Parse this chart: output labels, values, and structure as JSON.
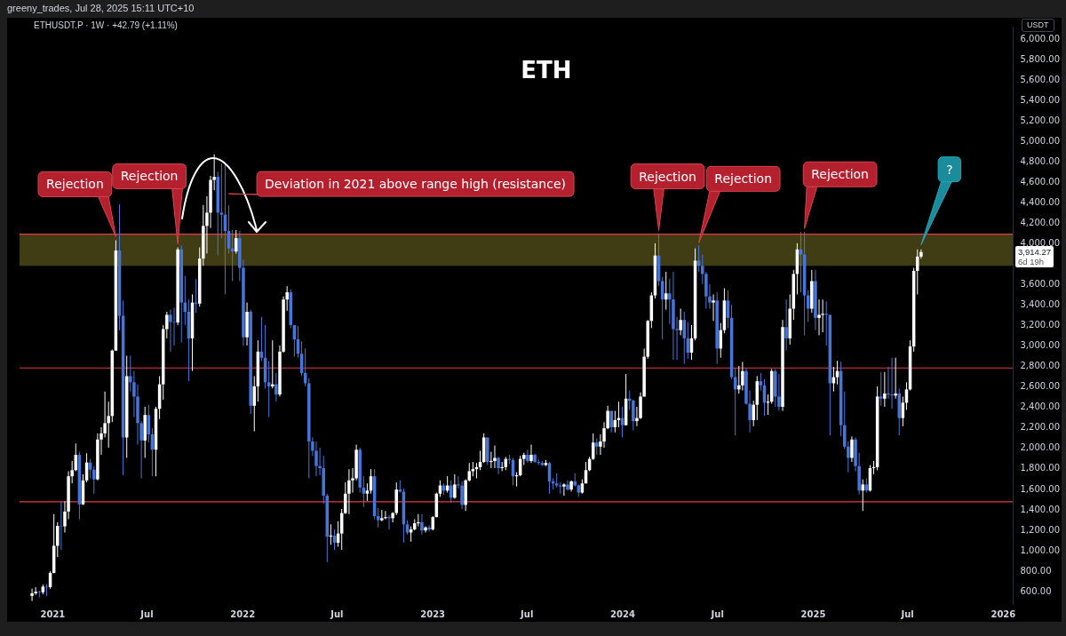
{
  "chart_data": {
    "type": "candlestick",
    "title": "ETH",
    "subtitle": "ETHUSDT.P · 1W · +42.79 (+1.11%)",
    "ylabel": "USDT",
    "annotations": [
      "greeny_trades, Jul 28, 2025 15:11 UTC+10",
      "3,914.27",
      "6d 19h",
      {
        "text": "Rejection",
        "x": "2021-05-03",
        "y": 4030
      },
      {
        "text": "Rejection",
        "x": "2021-08-30",
        "y": 3960
      },
      {
        "text": "Deviation in 2021 above range high (resistance)",
        "x": "2021-12-06",
        "y": 4450
      },
      {
        "text": "Rejection",
        "x": "2024-03-11",
        "y": 4090
      },
      {
        "text": "Rejection",
        "x": "2024-05-27",
        "y": 3970
      },
      {
        "text": "Rejection",
        "x": "2024-12-16",
        "y": 4110
      },
      {
        "text": "?",
        "x": "2025-07-28",
        "y": 3950
      }
    ],
    "xlim": [
      "2020-10-30",
      "2026-01-20"
    ],
    "xticks": [
      {
        "value": "2021-01-01",
        "label": "2021"
      },
      {
        "value": "2021-07-01",
        "label": "Jul"
      },
      {
        "value": "2022-01-01",
        "label": "2022"
      },
      {
        "value": "2022-07-01",
        "label": "Jul"
      },
      {
        "value": "2023-01-01",
        "label": "2023"
      },
      {
        "value": "2023-07-01",
        "label": "Jul"
      },
      {
        "value": "2024-01-01",
        "label": "2024"
      },
      {
        "value": "2024-07-01",
        "label": "Jul"
      },
      {
        "value": "2025-01-01",
        "label": "2025"
      },
      {
        "value": "2025-07-01",
        "label": "Jul"
      },
      {
        "value": "2026-01-01",
        "label": "2026"
      }
    ],
    "ylim": [
      470,
      6120
    ],
    "yticks": [
      {
        "value": 600,
        "label": "600.00"
      },
      {
        "value": 800,
        "label": "800.00"
      },
      {
        "value": 1000,
        "label": "1,000.00"
      },
      {
        "value": 1200,
        "label": "1,200.00"
      },
      {
        "value": 1400,
        "label": "1,400.00"
      },
      {
        "value": 1600,
        "label": "1,600.00"
      },
      {
        "value": 1800,
        "label": "1,800.00"
      },
      {
        "value": 2000,
        "label": "2,000.00"
      },
      {
        "value": 2200,
        "label": "2,200.00"
      },
      {
        "value": 2400,
        "label": "2,400.00"
      },
      {
        "value": 2600,
        "label": "2,600.00"
      },
      {
        "value": 2800,
        "label": "2,800.00"
      },
      {
        "value": 3000,
        "label": "3,000.00"
      },
      {
        "value": 3200,
        "label": "3,200.00"
      },
      {
        "value": 3400,
        "label": "3,400.00"
      },
      {
        "value": 3600,
        "label": "3,600.00"
      },
      {
        "value": 4000,
        "label": "4,000.00"
      },
      {
        "value": 4200,
        "label": "4,200.00"
      },
      {
        "value": 4400,
        "label": "4,400.00"
      },
      {
        "value": 4600,
        "label": "4,600.00"
      },
      {
        "value": 4800,
        "label": "4,800.00"
      },
      {
        "value": 5000,
        "label": "5,000.00"
      },
      {
        "value": 5200,
        "label": "5,200.00"
      },
      {
        "value": 5400,
        "label": "5,400.00"
      },
      {
        "value": 5600,
        "label": "5,600.00"
      },
      {
        "value": 5800,
        "label": "5,800.00"
      },
      {
        "value": 6000,
        "label": "6,000.00"
      }
    ],
    "grid": false,
    "bands": [
      {
        "axis": "y",
        "from": 3780,
        "to": 4090,
        "color": "#4b4616"
      }
    ],
    "ref_lines": [
      {
        "axis": "y",
        "value": 4090,
        "color": "#e23a4a"
      },
      {
        "axis": "y",
        "value": 2780,
        "color": "#e23a4a"
      },
      {
        "axis": "y",
        "value": 1470,
        "color": "#e23a4a"
      }
    ],
    "x": [
      "2020-11-23",
      "2020-11-30",
      "2020-12-07",
      "2020-12-14",
      "2020-12-21",
      "2020-12-28",
      "2021-01-04",
      "2021-01-11",
      "2021-01-18",
      "2021-01-25",
      "2021-02-01",
      "2021-02-08",
      "2021-02-15",
      "2021-02-22",
      "2021-03-01",
      "2021-03-08",
      "2021-03-15",
      "2021-03-22",
      "2021-03-29",
      "2021-04-05",
      "2021-04-12",
      "2021-04-19",
      "2021-04-26",
      "2021-05-03",
      "2021-05-10",
      "2021-05-17",
      "2021-05-24",
      "2021-05-31",
      "2021-06-07",
      "2021-06-14",
      "2021-06-21",
      "2021-06-28",
      "2021-07-05",
      "2021-07-12",
      "2021-07-19",
      "2021-07-26",
      "2021-08-02",
      "2021-08-09",
      "2021-08-16",
      "2021-08-23",
      "2021-08-30",
      "2021-09-06",
      "2021-09-13",
      "2021-09-20",
      "2021-09-27",
      "2021-10-04",
      "2021-10-11",
      "2021-10-18",
      "2021-10-25",
      "2021-11-01",
      "2021-11-08",
      "2021-11-15",
      "2021-11-22",
      "2021-11-29",
      "2021-12-06",
      "2021-12-13",
      "2021-12-20",
      "2021-12-27",
      "2022-01-03",
      "2022-01-10",
      "2022-01-17",
      "2022-01-24",
      "2022-01-31",
      "2022-02-07",
      "2022-02-14",
      "2022-02-21",
      "2022-02-28",
      "2022-03-07",
      "2022-03-14",
      "2022-03-21",
      "2022-03-28",
      "2022-04-04",
      "2022-04-11",
      "2022-04-18",
      "2022-04-25",
      "2022-05-02",
      "2022-05-09",
      "2022-05-16",
      "2022-05-23",
      "2022-05-30",
      "2022-06-06",
      "2022-06-13",
      "2022-06-20",
      "2022-06-27",
      "2022-07-04",
      "2022-07-11",
      "2022-07-18",
      "2022-07-25",
      "2022-08-01",
      "2022-08-08",
      "2022-08-15",
      "2022-08-22",
      "2022-08-29",
      "2022-09-05",
      "2022-09-12",
      "2022-09-19",
      "2022-09-26",
      "2022-10-03",
      "2022-10-10",
      "2022-10-17",
      "2022-10-24",
      "2022-10-31",
      "2022-11-07",
      "2022-11-14",
      "2022-11-21",
      "2022-11-28",
      "2022-12-05",
      "2022-12-12",
      "2022-12-19",
      "2022-12-26",
      "2023-01-02",
      "2023-01-09",
      "2023-01-16",
      "2023-01-23",
      "2023-01-30",
      "2023-02-06",
      "2023-02-13",
      "2023-02-20",
      "2023-02-27",
      "2023-03-06",
      "2023-03-13",
      "2023-03-20",
      "2023-03-27",
      "2023-04-03",
      "2023-04-10",
      "2023-04-17",
      "2023-04-24",
      "2023-05-01",
      "2023-05-08",
      "2023-05-15",
      "2023-05-22",
      "2023-05-29",
      "2023-06-05",
      "2023-06-12",
      "2023-06-19",
      "2023-06-26",
      "2023-07-03",
      "2023-07-10",
      "2023-07-17",
      "2023-07-24",
      "2023-07-31",
      "2023-08-07",
      "2023-08-14",
      "2023-08-21",
      "2023-08-28",
      "2023-09-04",
      "2023-09-11",
      "2023-09-18",
      "2023-09-25",
      "2023-10-02",
      "2023-10-09",
      "2023-10-16",
      "2023-10-23",
      "2023-10-30",
      "2023-11-06",
      "2023-11-13",
      "2023-11-20",
      "2023-11-27",
      "2023-12-04",
      "2023-12-11",
      "2023-12-18",
      "2023-12-25",
      "2024-01-01",
      "2024-01-08",
      "2024-01-15",
      "2024-01-22",
      "2024-01-29",
      "2024-02-05",
      "2024-02-12",
      "2024-02-19",
      "2024-02-26",
      "2024-03-04",
      "2024-03-11",
      "2024-03-18",
      "2024-03-25",
      "2024-04-01",
      "2024-04-08",
      "2024-04-15",
      "2024-04-22",
      "2024-04-29",
      "2024-05-06",
      "2024-05-13",
      "2024-05-20",
      "2024-05-27",
      "2024-06-03",
      "2024-06-10",
      "2024-06-17",
      "2024-06-24",
      "2024-07-01",
      "2024-07-08",
      "2024-07-15",
      "2024-07-22",
      "2024-07-29",
      "2024-08-05",
      "2024-08-12",
      "2024-08-19",
      "2024-08-26",
      "2024-09-02",
      "2024-09-09",
      "2024-09-16",
      "2024-09-23",
      "2024-09-30",
      "2024-10-07",
      "2024-10-14",
      "2024-10-21",
      "2024-10-28",
      "2024-11-04",
      "2024-11-11",
      "2024-11-18",
      "2024-11-25",
      "2024-12-02",
      "2024-12-09",
      "2024-12-16",
      "2024-12-23",
      "2024-12-30",
      "2025-01-06",
      "2025-01-13",
      "2025-01-20",
      "2025-01-27",
      "2025-02-03",
      "2025-02-10",
      "2025-02-17",
      "2025-02-24",
      "2025-03-03",
      "2025-03-10",
      "2025-03-17",
      "2025-03-24",
      "2025-03-31",
      "2025-04-07",
      "2025-04-14",
      "2025-04-21",
      "2025-04-28",
      "2025-05-05",
      "2025-05-12",
      "2025-05-19",
      "2025-05-26",
      "2025-06-02",
      "2025-06-09",
      "2025-06-16",
      "2025-06-23",
      "2025-06-30",
      "2025-07-07",
      "2025-07-14",
      "2025-07-21",
      "2025-07-28"
    ],
    "ohlc": [
      [
        550,
        620,
        500,
        575
      ],
      [
        575,
        635,
        560,
        590
      ],
      [
        590,
        600,
        535,
        585
      ],
      [
        585,
        660,
        565,
        640
      ],
      [
        640,
        665,
        550,
        635
      ],
      [
        635,
        790,
        620,
        775
      ],
      [
        775,
        1350,
        770,
        1040
      ],
      [
        1040,
        1270,
        930,
        1235
      ],
      [
        1235,
        1475,
        1000,
        1230
      ],
      [
        1230,
        1475,
        1170,
        1375
      ],
      [
        1375,
        1770,
        1300,
        1720
      ],
      [
        1720,
        1870,
        1650,
        1780
      ],
      [
        1780,
        2040,
        1770,
        1930
      ],
      [
        1930,
        1960,
        1300,
        1445
      ],
      [
        1445,
        1740,
        1440,
        1680
      ],
      [
        1680,
        1945,
        1660,
        1855
      ],
      [
        1855,
        1890,
        1700,
        1785
      ],
      [
        1785,
        1820,
        1550,
        1690
      ],
      [
        1690,
        2140,
        1680,
        2080
      ],
      [
        2080,
        2200,
        1930,
        2140
      ],
      [
        2140,
        2550,
        2100,
        2240
      ],
      [
        2240,
        2450,
        2000,
        2310
      ],
      [
        2310,
        2960,
        2250,
        2950
      ],
      [
        2950,
        4030,
        2950,
        3930
      ],
      [
        3930,
        4380,
        3150,
        3290
      ],
      [
        3290,
        3440,
        1730,
        2100
      ],
      [
        2100,
        2900,
        1900,
        2700
      ],
      [
        2700,
        2900,
        2550,
        2640
      ],
      [
        2640,
        2750,
        2300,
        2500
      ],
      [
        2500,
        2620,
        2030,
        2240
      ],
      [
        2240,
        2260,
        1700,
        2070
      ],
      [
        2070,
        2400,
        1900,
        2320
      ],
      [
        2320,
        2420,
        2050,
        2130
      ],
      [
        2130,
        2190,
        1720,
        1980
      ],
      [
        1980,
        2400,
        1720,
        2380
      ],
      [
        2380,
        2700,
        2280,
        2620
      ],
      [
        2620,
        3200,
        2470,
        3160
      ],
      [
        3160,
        3330,
        3070,
        3300
      ],
      [
        3300,
        3350,
        2940,
        3230
      ],
      [
        3230,
        3370,
        3000,
        3225
      ],
      [
        3225,
        3960,
        3200,
        3940
      ],
      [
        3940,
        3980,
        3030,
        3420
      ],
      [
        3420,
        3680,
        3200,
        3330
      ],
      [
        3330,
        3450,
        2650,
        3070
      ],
      [
        3070,
        3500,
        2750,
        3420
      ],
      [
        3420,
        3650,
        3320,
        3410
      ],
      [
        3410,
        3960,
        3380,
        3850
      ],
      [
        3850,
        4375,
        3780,
        4170
      ],
      [
        4170,
        4460,
        3900,
        4300
      ],
      [
        4300,
        4660,
        4150,
        4620
      ],
      [
        4620,
        4870,
        4520,
        4650
      ],
      [
        4650,
        4700,
        3880,
        4300
      ],
      [
        4300,
        4780,
        4050,
        4280
      ],
      [
        4280,
        4790,
        3500,
        4120
      ],
      [
        4120,
        4370,
        3900,
        3950
      ],
      [
        3950,
        4130,
        3630,
        3920
      ],
      [
        3920,
        4130,
        3900,
        4050
      ],
      [
        4050,
        4120,
        3630,
        3760
      ],
      [
        3760,
        3840,
        3000,
        3080
      ],
      [
        3080,
        3420,
        3000,
        3330
      ],
      [
        3330,
        3350,
        2330,
        2410
      ],
      [
        2410,
        2700,
        2160,
        2600
      ],
      [
        2600,
        3050,
        2450,
        2940
      ],
      [
        2940,
        3280,
        2850,
        2880
      ],
      [
        2880,
        3200,
        2580,
        2640
      ],
      [
        2640,
        2850,
        2300,
        2600
      ],
      [
        2600,
        3050,
        2580,
        2620
      ],
      [
        2620,
        2730,
        2450,
        2520
      ],
      [
        2520,
        3000,
        2500,
        2940
      ],
      [
        2940,
        3480,
        2930,
        3450
      ],
      [
        3450,
        3580,
        3340,
        3520
      ],
      [
        3520,
        3550,
        3170,
        3200
      ],
      [
        3200,
        3200,
        2890,
        3060
      ],
      [
        3060,
        3190,
        2880,
        2920
      ],
      [
        2920,
        3040,
        2700,
        2730
      ],
      [
        2730,
        2970,
        2600,
        2630
      ],
      [
        2630,
        2680,
        1700,
        2060
      ],
      [
        2060,
        2100,
        1920,
        1970
      ],
      [
        1970,
        2060,
        1720,
        1820
      ],
      [
        1820,
        2000,
        1730,
        1800
      ],
      [
        1800,
        1920,
        1450,
        1530
      ],
      [
        1530,
        1550,
        880,
        1130
      ],
      [
        1130,
        1250,
        1050,
        1140
      ],
      [
        1140,
        1200,
        1000,
        1070
      ],
      [
        1070,
        1280,
        1030,
        1160
      ],
      [
        1160,
        1400,
        1000,
        1360
      ],
      [
        1360,
        1660,
        1350,
        1550
      ],
      [
        1550,
        1790,
        1350,
        1680
      ],
      [
        1680,
        1800,
        1560,
        1700
      ],
      [
        1700,
        2030,
        1680,
        1980
      ],
      [
        1980,
        2000,
        1560,
        1610
      ],
      [
        1610,
        1720,
        1420,
        1550
      ],
      [
        1550,
        1650,
        1480,
        1580
      ],
      [
        1580,
        1790,
        1550,
        1720
      ],
      [
        1720,
        1790,
        1300,
        1330
      ],
      [
        1330,
        1410,
        1220,
        1290
      ],
      [
        1290,
        1390,
        1280,
        1310
      ],
      [
        1310,
        1380,
        1300,
        1320
      ],
      [
        1320,
        1340,
        1200,
        1310
      ],
      [
        1310,
        1370,
        1270,
        1360
      ],
      [
        1360,
        1660,
        1340,
        1590
      ],
      [
        1590,
        1680,
        1560,
        1570
      ],
      [
        1570,
        1600,
        1070,
        1250
      ],
      [
        1250,
        1290,
        1150,
        1170
      ],
      [
        1170,
        1230,
        1080,
        1200
      ],
      [
        1200,
        1300,
        1190,
        1260
      ],
      [
        1260,
        1350,
        1230,
        1270
      ],
      [
        1270,
        1350,
        1150,
        1190
      ],
      [
        1190,
        1230,
        1170,
        1220
      ],
      [
        1220,
        1240,
        1180,
        1200
      ],
      [
        1200,
        1330,
        1190,
        1320
      ],
      [
        1320,
        1560,
        1320,
        1550
      ],
      [
        1550,
        1680,
        1520,
        1630
      ],
      [
        1630,
        1650,
        1540,
        1580
      ],
      [
        1580,
        1720,
        1560,
        1630
      ],
      [
        1630,
        1680,
        1460,
        1510
      ],
      [
        1510,
        1740,
        1500,
        1640
      ],
      [
        1640,
        1720,
        1600,
        1630
      ],
      [
        1630,
        1670,
        1400,
        1440
      ],
      [
        1440,
        1690,
        1380,
        1680
      ],
      [
        1680,
        1850,
        1670,
        1770
      ],
      [
        1770,
        1860,
        1720,
        1790
      ],
      [
        1790,
        1850,
        1700,
        1810
      ],
      [
        1810,
        1970,
        1780,
        1860
      ],
      [
        1860,
        2140,
        1850,
        2100
      ],
      [
        2100,
        2100,
        1830,
        1860
      ],
      [
        1860,
        1960,
        1800,
        1870
      ],
      [
        1870,
        2020,
        1800,
        1900
      ],
      [
        1900,
        1910,
        1740,
        1800
      ],
      [
        1800,
        1860,
        1770,
        1810
      ],
      [
        1810,
        1910,
        1780,
        1890
      ],
      [
        1890,
        1930,
        1840,
        1880
      ],
      [
        1880,
        1900,
        1630,
        1720
      ],
      [
        1720,
        1760,
        1620,
        1730
      ],
      [
        1730,
        1920,
        1720,
        1890
      ],
      [
        1890,
        1950,
        1830,
        1930
      ],
      [
        1930,
        1980,
        1850,
        1870
      ],
      [
        1870,
        2030,
        1850,
        1930
      ],
      [
        1930,
        1940,
        1850,
        1860
      ],
      [
        1860,
        1890,
        1830,
        1850
      ],
      [
        1850,
        1870,
        1820,
        1830
      ],
      [
        1830,
        1880,
        1820,
        1850
      ],
      [
        1850,
        1860,
        1550,
        1670
      ],
      [
        1670,
        1700,
        1590,
        1650
      ],
      [
        1650,
        1750,
        1610,
        1630
      ],
      [
        1630,
        1660,
        1550,
        1620
      ],
      [
        1620,
        1650,
        1530,
        1640
      ],
      [
        1640,
        1680,
        1580,
        1590
      ],
      [
        1590,
        1680,
        1570,
        1670
      ],
      [
        1670,
        1750,
        1620,
        1630
      ],
      [
        1630,
        1640,
        1520,
        1560
      ],
      [
        1560,
        1690,
        1550,
        1650
      ],
      [
        1650,
        1860,
        1650,
        1780
      ],
      [
        1780,
        1910,
        1770,
        1890
      ],
      [
        1890,
        2140,
        1880,
        2050
      ],
      [
        2050,
        2090,
        1930,
        2010
      ],
      [
        2010,
        2130,
        1930,
        2060
      ],
      [
        2060,
        2250,
        2000,
        2190
      ],
      [
        2190,
        2410,
        2180,
        2360
      ],
      [
        2360,
        2360,
        2150,
        2200
      ],
      [
        2200,
        2360,
        2150,
        2270
      ],
      [
        2270,
        2450,
        2200,
        2290
      ],
      [
        2290,
        2400,
        2100,
        2220
      ],
      [
        2220,
        2720,
        2220,
        2480
      ],
      [
        2480,
        2560,
        2370,
        2460
      ],
      [
        2460,
        2470,
        2170,
        2260
      ],
      [
        2260,
        2400,
        2210,
        2290
      ],
      [
        2290,
        2540,
        2280,
        2500
      ],
      [
        2500,
        2970,
        2500,
        2890
      ],
      [
        2890,
        3250,
        2870,
        3240
      ],
      [
        3240,
        3520,
        3170,
        3490
      ],
      [
        3490,
        4000,
        3460,
        3880
      ],
      [
        3880,
        4090,
        3580,
        3630
      ],
      [
        3630,
        3670,
        3060,
        3450
      ],
      [
        3450,
        3720,
        3350,
        3510
      ],
      [
        3510,
        3650,
        3210,
        3450
      ],
      [
        3450,
        3720,
        2860,
        3160
      ],
      [
        3160,
        3280,
        2860,
        3150
      ],
      [
        3150,
        3360,
        3100,
        3250
      ],
      [
        3250,
        3330,
        2820,
        3070
      ],
      [
        3070,
        3230,
        2870,
        2930
      ],
      [
        2930,
        3200,
        2860,
        3070
      ],
      [
        3070,
        3950,
        3050,
        3830
      ],
      [
        3830,
        3980,
        3720,
        3780
      ],
      [
        3780,
        3890,
        3600,
        3700
      ],
      [
        3700,
        3720,
        3360,
        3480
      ],
      [
        3480,
        3600,
        3360,
        3420
      ],
      [
        3420,
        3500,
        3240,
        3440
      ],
      [
        3440,
        3520,
        2820,
        2970
      ],
      [
        2970,
        3220,
        2880,
        3150
      ],
      [
        3150,
        3560,
        3120,
        3440
      ],
      [
        3440,
        3540,
        3170,
        3270
      ],
      [
        3270,
        3400,
        2670,
        2690
      ],
      [
        2690,
        2780,
        2120,
        2570
      ],
      [
        2570,
        2800,
        2530,
        2610
      ],
      [
        2610,
        2840,
        2560,
        2750
      ],
      [
        2750,
        2780,
        2420,
        2430
      ],
      [
        2430,
        2560,
        2150,
        2270
      ],
      [
        2270,
        2460,
        2210,
        2420
      ],
      [
        2420,
        2700,
        2270,
        2650
      ],
      [
        2650,
        2730,
        2560,
        2610
      ],
      [
        2610,
        2670,
        2310,
        2440
      ],
      [
        2440,
        2520,
        2320,
        2450
      ],
      [
        2450,
        2770,
        2430,
        2750
      ],
      [
        2750,
        2770,
        2400,
        2500
      ],
      [
        2500,
        2720,
        2360,
        2400
      ],
      [
        2400,
        3250,
        2360,
        3180
      ],
      [
        3180,
        3450,
        2950,
        3070
      ],
      [
        3070,
        3500,
        3010,
        3360
      ],
      [
        3360,
        3740,
        3250,
        3700
      ],
      [
        3700,
        4000,
        3500,
        3940
      ],
      [
        3940,
        4110,
        3520,
        3890
      ],
      [
        3890,
        4110,
        3100,
        3490
      ],
      [
        3490,
        3540,
        3230,
        3360
      ],
      [
        3360,
        3740,
        3320,
        3630
      ],
      [
        3630,
        3740,
        3150,
        3270
      ],
      [
        3270,
        3450,
        3100,
        3300
      ],
      [
        3300,
        3450,
        3130,
        3310
      ],
      [
        3310,
        3430,
        3000,
        3300
      ],
      [
        3300,
        3300,
        2120,
        2630
      ],
      [
        2630,
        2790,
        2550,
        2690
      ],
      [
        2690,
        2850,
        2620,
        2750
      ],
      [
        2750,
        2840,
        2110,
        2220
      ],
      [
        2220,
        2550,
        1990,
        2010
      ],
      [
        2010,
        2060,
        1760,
        1900
      ],
      [
        1900,
        2110,
        1860,
        2080
      ],
      [
        2080,
        2100,
        1770,
        1820
      ],
      [
        1820,
        1950,
        1540,
        1580
      ],
      [
        1580,
        1690,
        1380,
        1640
      ],
      [
        1640,
        1700,
        1560,
        1580
      ],
      [
        1580,
        1830,
        1570,
        1800
      ],
      [
        1800,
        1870,
        1740,
        1810
      ],
      [
        1810,
        2600,
        1780,
        2500
      ],
      [
        2500,
        2740,
        2410,
        2480
      ],
      [
        2480,
        2740,
        2400,
        2530
      ],
      [
        2530,
        2790,
        2480,
        2520
      ],
      [
        2520,
        2880,
        2380,
        2510
      ],
      [
        2510,
        2880,
        2480,
        2530
      ],
      [
        2530,
        2580,
        2120,
        2290
      ],
      [
        2290,
        2500,
        2210,
        2440
      ],
      [
        2440,
        2640,
        2370,
        2570
      ],
      [
        2570,
        3050,
        2560,
        2990
      ],
      [
        2990,
        3760,
        2940,
        3730
      ],
      [
        3730,
        3940,
        3500,
        3870
      ],
      [
        3870,
        3940,
        3850,
        3914.27
      ]
    ],
    "colors": [
      "#ffffff",
      "#ffffff",
      "#4676dc",
      "#ffffff",
      "#4676dc",
      "#ffffff",
      "#ffffff",
      "#ffffff",
      "#4676dc",
      "#ffffff",
      "#ffffff",
      "#ffffff",
      "#ffffff",
      "#4676dc",
      "#ffffff",
      "#ffffff",
      "#4676dc",
      "#4676dc",
      "#ffffff",
      "#ffffff",
      "#ffffff",
      "#ffffff",
      "#ffffff",
      "#ffffff",
      "#4676dc",
      "#4676dc",
      "#ffffff",
      "#4676dc",
      "#4676dc",
      "#4676dc",
      "#4676dc",
      "#ffffff",
      "#4676dc",
      "#4676dc",
      "#ffffff",
      "#ffffff",
      "#ffffff",
      "#ffffff",
      "#4676dc",
      "#4676dc",
      "#ffffff",
      "#4676dc",
      "#4676dc",
      "#4676dc",
      "#ffffff",
      "#4676dc",
      "#ffffff",
      "#ffffff",
      "#ffffff",
      "#ffffff",
      "#ffffff",
      "#4676dc",
      "#4676dc",
      "#4676dc",
      "#4676dc",
      "#4676dc",
      "#ffffff",
      "#4676dc",
      "#4676dc",
      "#ffffff",
      "#4676dc",
      "#ffffff",
      "#ffffff",
      "#4676dc",
      "#4676dc",
      "#4676dc",
      "#ffffff",
      "#4676dc",
      "#ffffff",
      "#ffffff",
      "#ffffff",
      "#4676dc",
      "#4676dc",
      "#4676dc",
      "#4676dc",
      "#4676dc",
      "#4676dc",
      "#4676dc",
      "#4676dc",
      "#4676dc",
      "#4676dc",
      "#4676dc",
      "#ffffff",
      "#4676dc",
      "#ffffff",
      "#ffffff",
      "#ffffff",
      "#ffffff",
      "#ffffff",
      "#ffffff",
      "#4676dc",
      "#4676dc",
      "#ffffff",
      "#ffffff",
      "#4676dc",
      "#4676dc",
      "#ffffff",
      "#ffffff",
      "#4676dc",
      "#ffffff",
      "#ffffff",
      "#4676dc",
      "#4676dc",
      "#4676dc",
      "#ffffff",
      "#ffffff",
      "#ffffff",
      "#4676dc",
      "#ffffff",
      "#4676dc",
      "#ffffff",
      "#ffffff",
      "#ffffff",
      "#4676dc",
      "#ffffff",
      "#4676dc",
      "#ffffff",
      "#4676dc",
      "#4676dc",
      "#ffffff",
      "#ffffff",
      "#ffffff",
      "#ffffff",
      "#ffffff",
      "#ffffff",
      "#4676dc",
      "#ffffff",
      "#ffffff",
      "#4676dc",
      "#ffffff",
      "#ffffff",
      "#4676dc",
      "#4676dc",
      "#ffffff",
      "#ffffff",
      "#ffffff",
      "#4676dc",
      "#ffffff",
      "#4676dc",
      "#4676dc",
      "#4676dc",
      "#ffffff",
      "#4676dc",
      "#4676dc",
      "#4676dc",
      "#4676dc",
      "#ffffff",
      "#4676dc",
      "#ffffff",
      "#4676dc",
      "#4676dc",
      "#ffffff",
      "#ffffff",
      "#ffffff",
      "#ffffff",
      "#4676dc",
      "#ffffff",
      "#ffffff",
      "#ffffff",
      "#4676dc",
      "#ffffff",
      "#ffffff",
      "#4676dc",
      "#ffffff",
      "#4676dc",
      "#4676dc",
      "#ffffff",
      "#ffffff",
      "#ffffff",
      "#ffffff",
      "#ffffff",
      "#ffffff",
      "#4676dc",
      "#4676dc",
      "#ffffff",
      "#4676dc",
      "#4676dc",
      "#4676dc",
      "#ffffff",
      "#4676dc",
      "#4676dc",
      "#ffffff",
      "#ffffff",
      "#4676dc",
      "#4676dc",
      "#4676dc",
      "#4676dc",
      "#ffffff",
      "#4676dc",
      "#ffffff",
      "#ffffff",
      "#4676dc",
      "#4676dc",
      "#4676dc",
      "#ffffff",
      "#ffffff",
      "#4676dc",
      "#4676dc",
      "#ffffff",
      "#ffffff",
      "#4676dc",
      "#4676dc",
      "#ffffff",
      "#ffffff",
      "#4676dc",
      "#4676dc",
      "#ffffff",
      "#4676dc",
      "#ffffff",
      "#ffffff",
      "#ffffff",
      "#4676dc",
      "#4676dc",
      "#4676dc",
      "#ffffff",
      "#4676dc",
      "#ffffff",
      "#ffffff",
      "#4676dc",
      "#4676dc",
      "#ffffff",
      "#ffffff",
      "#4676dc",
      "#4676dc",
      "#4676dc",
      "#ffffff",
      "#4676dc",
      "#4676dc",
      "#ffffff",
      "#4676dc",
      "#ffffff",
      "#ffffff",
      "#ffffff",
      "#4676dc",
      "#ffffff",
      "#4676dc",
      "#4676dc",
      "#ffffff",
      "#4676dc",
      "#ffffff",
      "#ffffff",
      "#ffffff",
      "#ffffff",
      "#ffffff",
      "#ffffff"
    ]
  }
}
